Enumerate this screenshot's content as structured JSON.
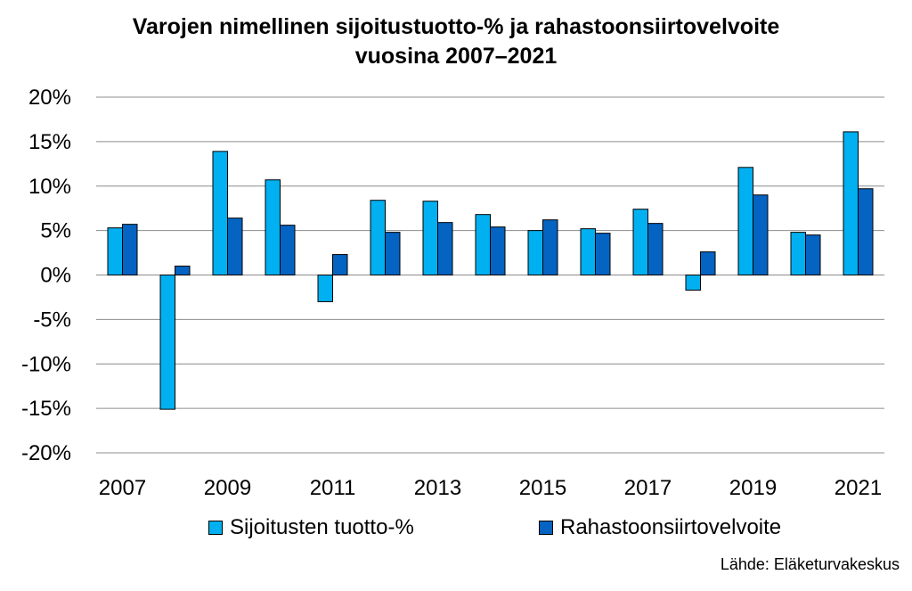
{
  "chart_data": {
    "type": "bar",
    "title_line1": "Varojen nimellinen sijoitustuotto-% ja rahastoonsiirtovelvoite",
    "title_line2": "vuosina 2007–2021",
    "categories": [
      "2007",
      "2008",
      "2009",
      "2010",
      "2011",
      "2012",
      "2013",
      "2014",
      "2015",
      "2016",
      "2017",
      "2018",
      "2019",
      "2020",
      "2021"
    ],
    "x_tick_labels": [
      "2007",
      "2009",
      "2011",
      "2013",
      "2015",
      "2017",
      "2019",
      "2021"
    ],
    "y_tick_labels": [
      "20%",
      "15%",
      "10%",
      "5%",
      "0%",
      "-5%",
      "-10%",
      "-15%",
      "-20%"
    ],
    "ylim": [
      -20,
      20
    ],
    "grid": true,
    "legend_position": "bottom",
    "series": [
      {
        "name": "Sijoitusten tuotto-%",
        "color": "#00B0F0",
        "values": [
          5.3,
          -15.1,
          13.9,
          10.7,
          -3.0,
          8.4,
          8.3,
          6.8,
          5.0,
          5.2,
          7.4,
          -1.7,
          12.1,
          4.8,
          16.1
        ]
      },
      {
        "name": "Rahastoonsiirtovelvoite",
        "color": "#0563C1",
        "values": [
          5.7,
          1.0,
          6.4,
          5.6,
          2.3,
          4.8,
          5.9,
          5.4,
          6.2,
          4.7,
          5.8,
          2.6,
          9.0,
          4.5,
          9.7
        ]
      }
    ]
  },
  "source": "Lähde: Eläketurvakeskus"
}
